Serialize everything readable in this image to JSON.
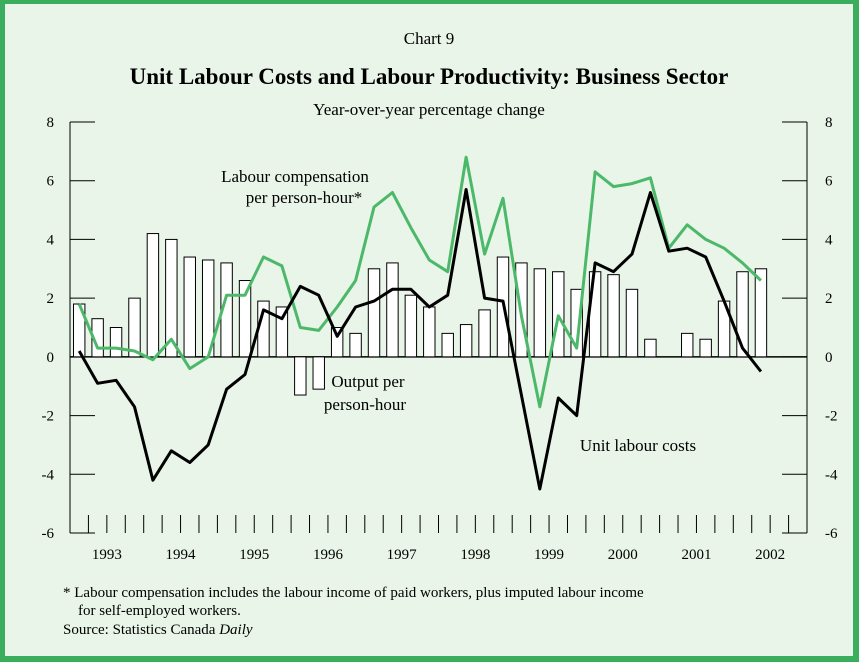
{
  "chart_label": "Chart 9",
  "title": "Unit Labour Costs and Labour Productivity: Business Sector",
  "subtitle": "Year-over-year percentage change",
  "footnote": {
    "line1": "* Labour compensation includes the labour income of paid workers, plus imputed labour income",
    "line2": "for self-employed workers."
  },
  "source": {
    "prefix": "Source: Statistics Canada ",
    "italic": "Daily"
  },
  "colors": {
    "background": "#e8f5e8",
    "border": "#3aae5c",
    "compensation_line": "#4cb86a",
    "unit_cost_line": "#000000",
    "bar_fill": "#ffffff",
    "bar_stroke": "#000000"
  },
  "chart_data": {
    "type": "bar",
    "ylim": [
      -6,
      8
    ],
    "yticks": [
      -6,
      -4,
      -2,
      0,
      2,
      4,
      6,
      8
    ],
    "year_labels": [
      "1993",
      "1994",
      "1995",
      "1996",
      "1997",
      "1998",
      "1999",
      "2000",
      "2001",
      "2002"
    ],
    "quarters_first": "1993Q1",
    "series": [
      {
        "name": "Output per person-hour",
        "kind": "bar",
        "values": [
          1.8,
          1.3,
          1.0,
          2.0,
          4.2,
          4.0,
          3.4,
          3.3,
          3.2,
          2.6,
          1.9,
          1.7,
          -1.3,
          -1.1,
          1.0,
          0.8,
          3.0,
          3.2,
          2.1,
          1.7,
          0.8,
          1.1,
          1.6,
          3.4,
          3.2,
          3.0,
          2.9,
          2.3,
          2.9,
          2.8,
          2.3,
          0.6,
          null,
          0.8,
          0.6,
          1.9,
          2.9,
          3.0
        ]
      },
      {
        "name": "Labour compensation per person-hour*",
        "kind": "line",
        "values": [
          1.8,
          0.3,
          0.3,
          0.2,
          -0.1,
          0.6,
          -0.4,
          0.0,
          2.1,
          2.1,
          3.4,
          3.1,
          1.0,
          0.9,
          1.7,
          2.6,
          5.1,
          5.6,
          4.4,
          3.3,
          2.9,
          6.8,
          3.5,
          5.4,
          1.4,
          -1.7,
          1.4,
          0.3,
          6.3,
          5.8,
          5.9,
          6.1,
          3.7,
          4.5,
          4.0,
          3.7,
          3.2,
          2.6
        ]
      },
      {
        "name": "Unit labour costs",
        "kind": "line",
        "values": [
          0.2,
          -0.9,
          -0.8,
          -1.7,
          -4.2,
          -3.2,
          -3.6,
          -3.0,
          -1.1,
          -0.6,
          1.6,
          1.3,
          2.4,
          2.1,
          0.7,
          1.7,
          1.9,
          2.3,
          2.3,
          1.7,
          2.1,
          5.7,
          2.0,
          1.9,
          -1.3,
          -4.5,
          -1.4,
          -2.0,
          3.2,
          2.9,
          3.5,
          5.6,
          3.6,
          3.7,
          3.4,
          1.9,
          0.3,
          -0.5
        ]
      }
    ],
    "annotations": {
      "compensation_line1": "Labour compensation",
      "compensation_line2": "per person-hour*",
      "output_line1": "Output per",
      "output_line2": "person-hour",
      "unit_cost": "Unit labour costs"
    }
  }
}
